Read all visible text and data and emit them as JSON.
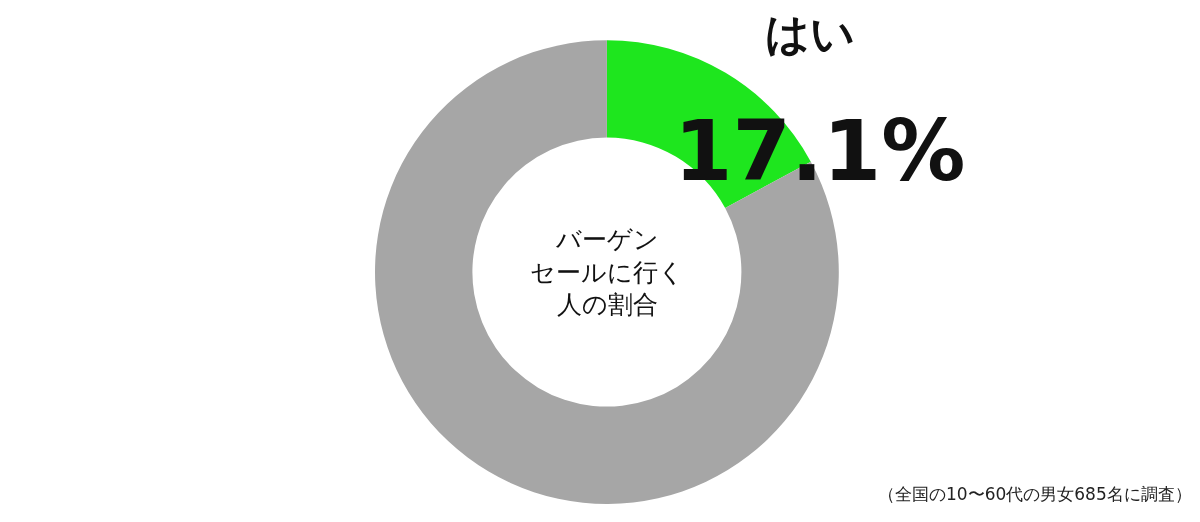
{
  "chart_data": {
    "type": "donut",
    "title": "バーゲンセールに行く人の割合",
    "categories": [
      "はい",
      null
    ],
    "values": [
      17.1,
      82.9
    ],
    "colors": [
      "#1ee61e",
      "#a6a6a6"
    ],
    "value_labels": [
      "17.1%",
      null
    ],
    "legend": false,
    "annotations": [
      "（全国の10〜60代の男女685名に調査）"
    ]
  }
}
